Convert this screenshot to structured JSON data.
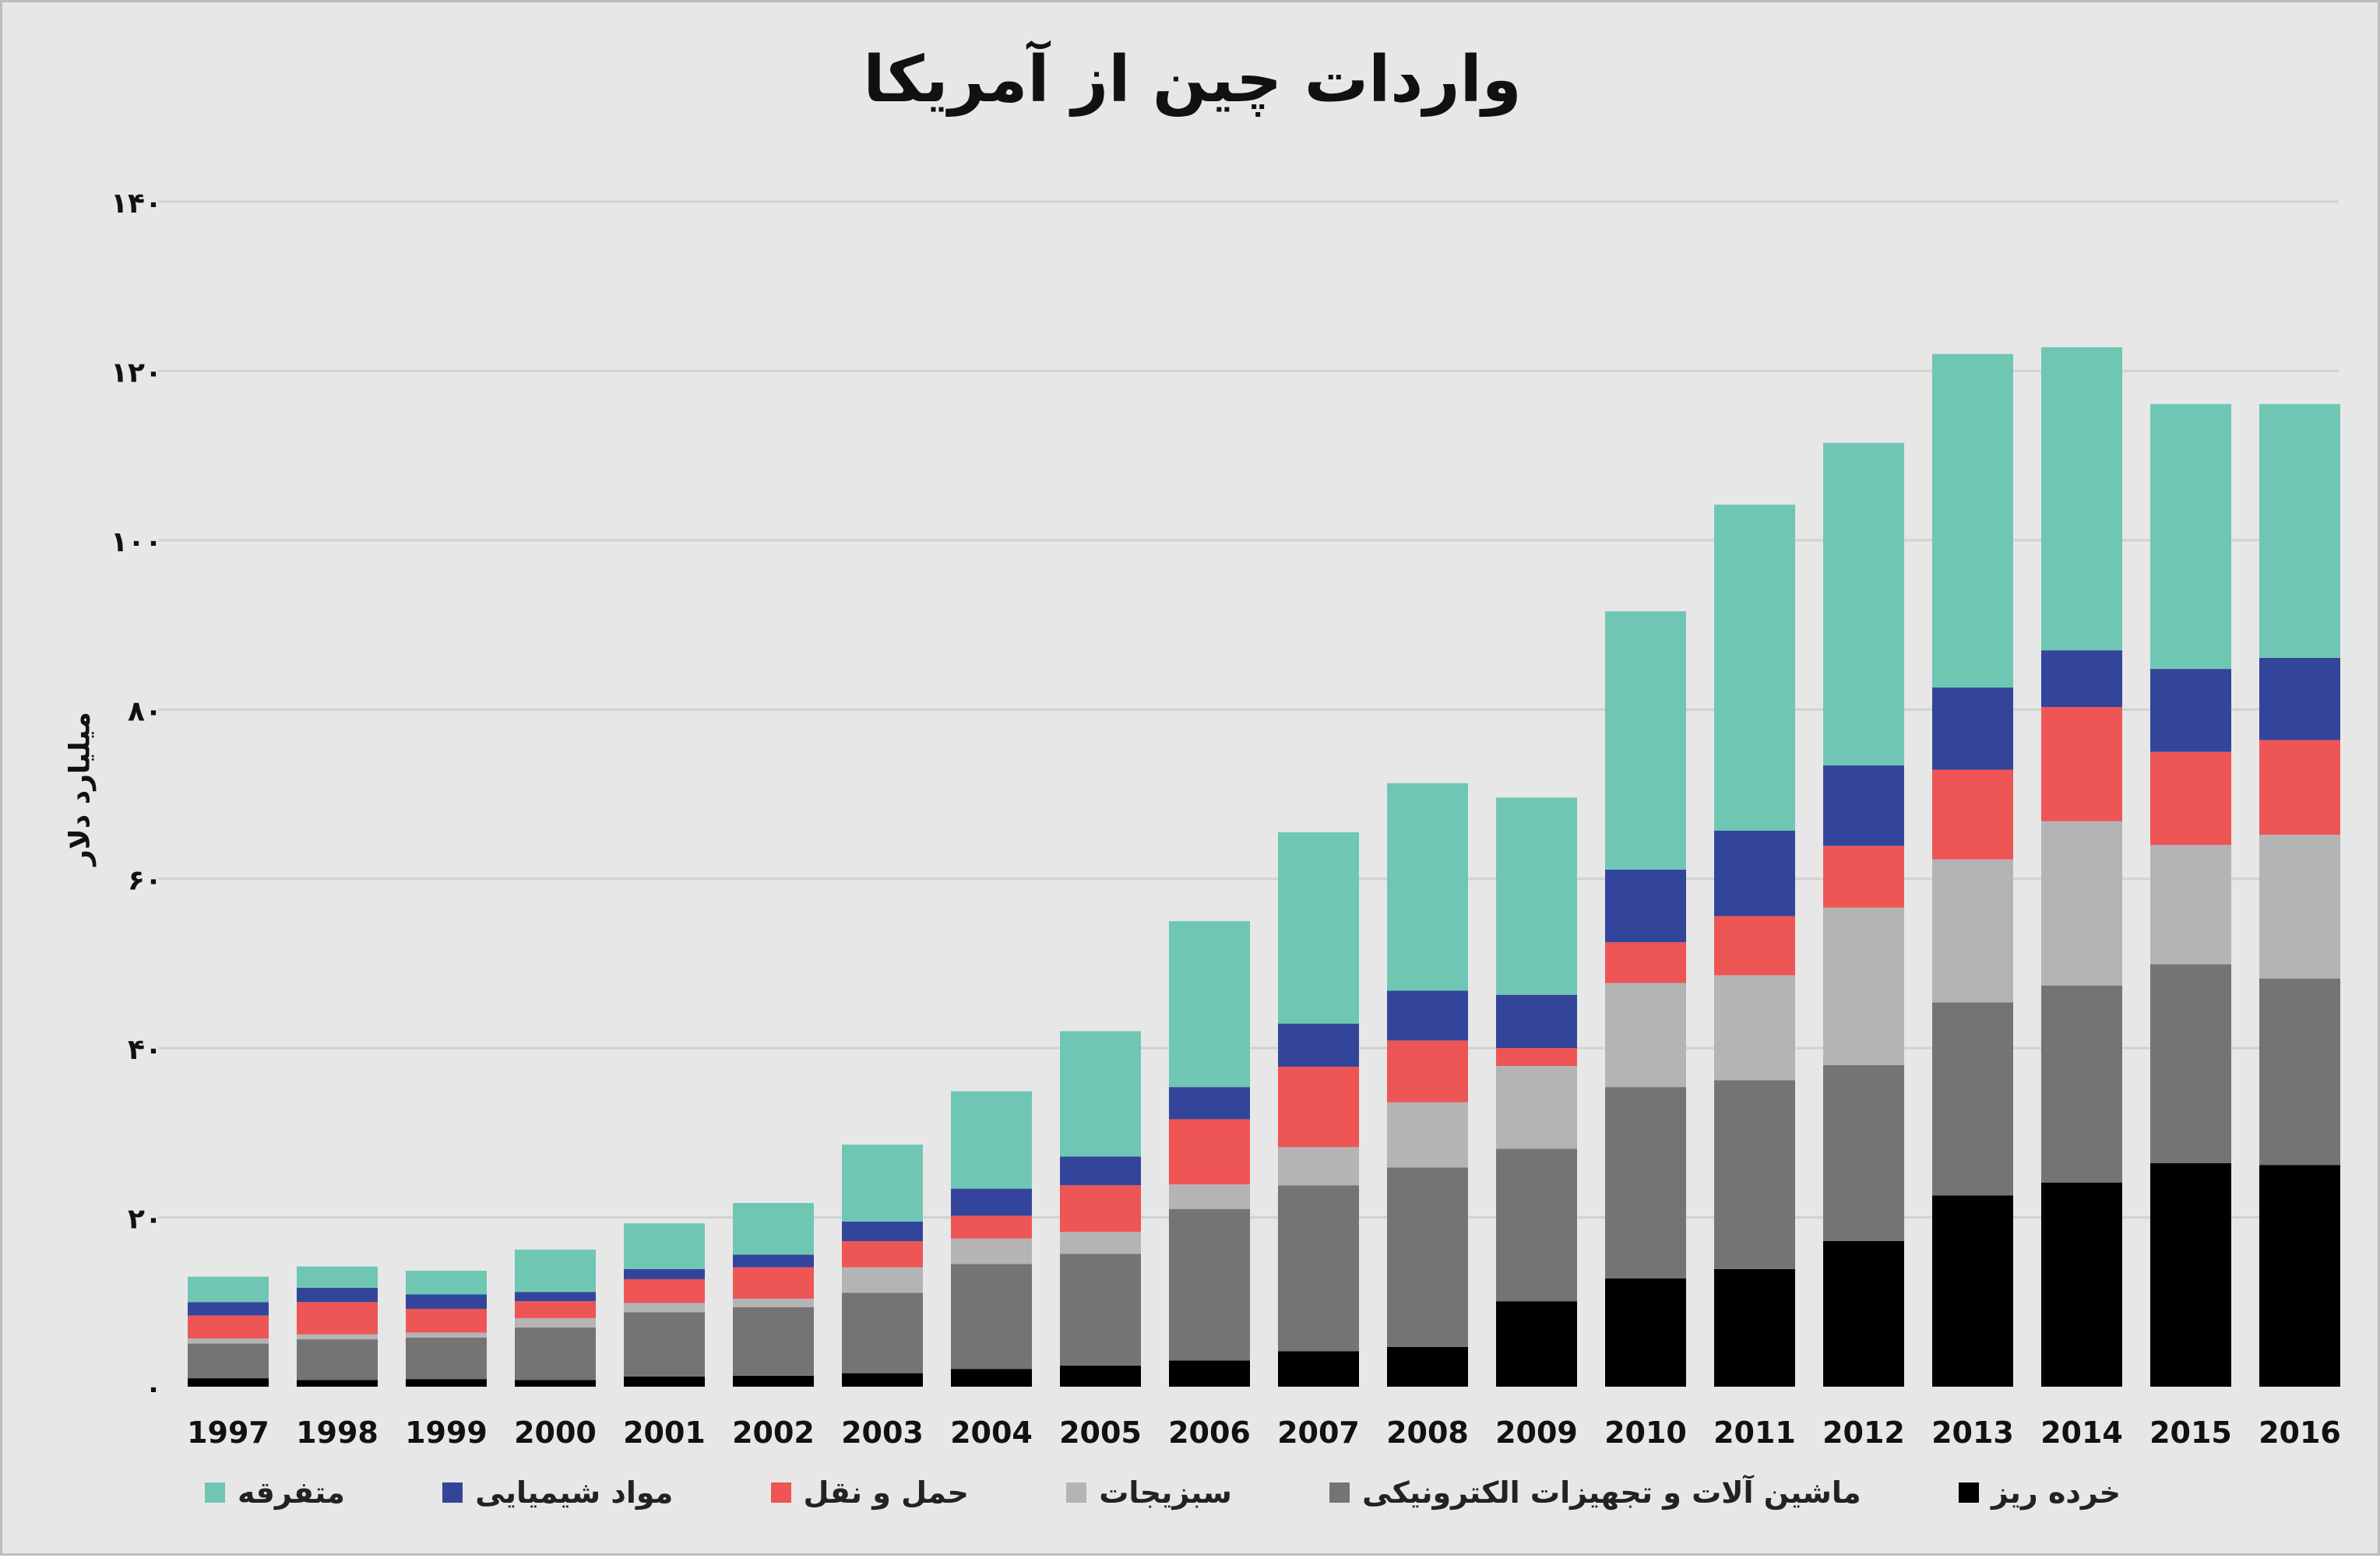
{
  "chart_data": {
    "type": "bar",
    "stacked": true,
    "title": "واردات چین از آمریکا",
    "ylabel": "میلیارد دلار",
    "xlabel": "",
    "ylim": [
      0,
      140
    ],
    "yticks": [
      0,
      20,
      40,
      60,
      80,
      100,
      120,
      140
    ],
    "ytick_labels": [
      "۰",
      "۲۰",
      "۴۰",
      "۶۰",
      "۸۰",
      "۱۰۰",
      "۱۲۰",
      "۱۴۰"
    ],
    "grid": true,
    "legend_position": "bottom",
    "categories": [
      "1997",
      "1998",
      "1999",
      "2000",
      "2001",
      "2002",
      "2003",
      "2004",
      "2005",
      "2006",
      "2007",
      "2008",
      "2009",
      "2010",
      "2011",
      "2012",
      "2013",
      "2014",
      "2015",
      "2016"
    ],
    "series": [
      {
        "name": "خرده ریز",
        "color": "#000000",
        "values": [
          1,
          0.8,
          0.9,
          0.8,
          1.2,
          1.3,
          1.6,
          2.1,
          2.5,
          3.1,
          4.2,
          4.7,
          10.1,
          12.8,
          13.9,
          17.2,
          22.6,
          24.1,
          26.4,
          26.2
        ]
      },
      {
        "name": "ماشین آلات و تجهیزات الکترونیکی",
        "color": "#767374",
        "values": [
          4.1,
          4.8,
          4.9,
          6.2,
          7.6,
          8.1,
          9.5,
          12.4,
          13.2,
          17.9,
          19.6,
          21.2,
          18,
          22.6,
          22.3,
          20.8,
          22.8,
          23.3,
          23.5,
          22
        ]
      },
      {
        "name": "سبزیجات",
        "color": "#b4b4b5",
        "values": [
          0.6,
          0.6,
          0.6,
          1.1,
          1.1,
          1,
          3,
          3,
          2.6,
          2.9,
          4.5,
          7.7,
          9.8,
          12.3,
          12.4,
          18.6,
          16.9,
          19.4,
          14.1,
          17
        ]
      },
      {
        "name": "حمل و نقل",
        "color": "#ee5555",
        "values": [
          2.7,
          3.8,
          2.8,
          2,
          2.8,
          3.7,
          3.1,
          2.7,
          5.5,
          7.7,
          9.5,
          7.3,
          2.1,
          4.8,
          7,
          7.3,
          10.6,
          13.5,
          11,
          11.2
        ]
      },
      {
        "name": "مواد شیمیایی",
        "color": "#33459b",
        "values": [
          1.6,
          1.7,
          1.7,
          1.1,
          1.2,
          1.5,
          2.3,
          3.2,
          3.4,
          3.8,
          5.1,
          5.9,
          6.3,
          8.6,
          10.1,
          9.5,
          9.7,
          6.7,
          9.8,
          9.7
        ]
      },
      {
        "name": "متفرقه",
        "color": "#6fc7b3",
        "values": [
          3,
          2.5,
          2.8,
          5,
          5.4,
          6.1,
          9.1,
          11.5,
          14.8,
          19.6,
          22.6,
          24.5,
          23.3,
          30.5,
          38.5,
          38.1,
          39.4,
          35.8,
          31.3,
          30
        ]
      }
    ]
  }
}
